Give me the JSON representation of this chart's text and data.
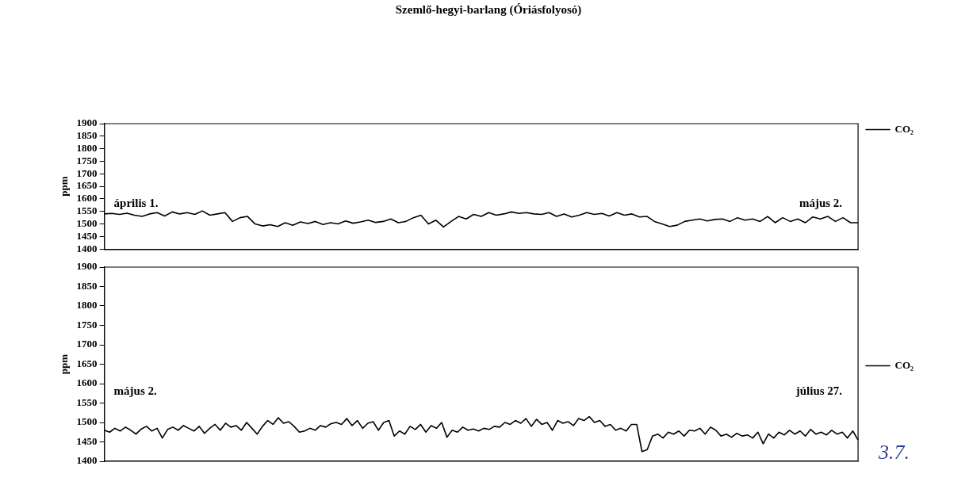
{
  "chart_data": [
    {
      "type": "line",
      "title": "Szemlő-hegyi-barlang (Óriásfolyosó)",
      "ylabel": "ppm",
      "ylim": [
        1400,
        1900
      ],
      "yticks": [
        1400,
        1450,
        1500,
        1550,
        1600,
        1650,
        1700,
        1750,
        1800,
        1850,
        1900
      ],
      "grid": false,
      "legend": "right",
      "tick_labels": "y",
      "line_style": "solid",
      "annotations": [
        "április 1.",
        "május 2."
      ],
      "categories": [
        null,
        null,
        null,
        null,
        null,
        null,
        null,
        null,
        null,
        null,
        null,
        null,
        null,
        null,
        null,
        null,
        null,
        null,
        null,
        null,
        null,
        null,
        null,
        null,
        null,
        null,
        null,
        null,
        null,
        null,
        null,
        null,
        null,
        null,
        null,
        null,
        null,
        null,
        null,
        null,
        null,
        null,
        null,
        null,
        null,
        null,
        null,
        null,
        null,
        null,
        null,
        null,
        null,
        null,
        null,
        null,
        null,
        null,
        null,
        null,
        null,
        null,
        null,
        null,
        null,
        null,
        null,
        null,
        null,
        null,
        null,
        null,
        null,
        null,
        null,
        null,
        null,
        null,
        null,
        null,
        null,
        null,
        null,
        null,
        null,
        null,
        null,
        null,
        null,
        null,
        null,
        null,
        null,
        null,
        null,
        null,
        null,
        null,
        null,
        null,
        null
      ],
      "series": [
        {
          "name": "CO₂",
          "color": "#000000",
          "values": [
            1540,
            1542,
            1538,
            1543,
            1535,
            1530,
            1540,
            1545,
            1532,
            1548,
            1540,
            1545,
            1538,
            1552,
            1535,
            1540,
            1545,
            1510,
            1525,
            1530,
            1500,
            1492,
            1497,
            1490,
            1505,
            1495,
            1508,
            1502,
            1510,
            1498,
            1505,
            1500,
            1512,
            1503,
            1508,
            1515,
            1506,
            1510,
            1520,
            1505,
            1510,
            1525,
            1535,
            1500,
            1515,
            1488,
            1510,
            1530,
            1520,
            1538,
            1530,
            1545,
            1535,
            1540,
            1548,
            1542,
            1545,
            1540,
            1538,
            1545,
            1530,
            1540,
            1528,
            1535,
            1545,
            1538,
            1542,
            1532,
            1545,
            1535,
            1540,
            1528,
            1530,
            1510,
            1500,
            1490,
            1495,
            1510,
            1515,
            1520,
            1512,
            1518,
            1520,
            1510,
            1525,
            1515,
            1520,
            1510,
            1530,
            1505,
            1525,
            1510,
            1520,
            1505,
            1528,
            1520,
            1530,
            1510,
            1525,
            1505,
            1505
          ]
        }
      ]
    },
    {
      "type": "line",
      "ylabel": "ppm",
      "ylim": [
        1400,
        1900
      ],
      "yticks": [
        1400,
        1450,
        1500,
        1550,
        1600,
        1650,
        1700,
        1750,
        1800,
        1850,
        1900
      ],
      "grid": false,
      "legend": "right",
      "tick_labels": "y",
      "line_style": "solid",
      "annotations": [
        "május 2.",
        "július 27.",
        "3.7."
      ],
      "categories": [
        null,
        null,
        null,
        null,
        null,
        null,
        null,
        null,
        null,
        null,
        null,
        null,
        null,
        null,
        null,
        null,
        null,
        null,
        null,
        null,
        null,
        null,
        null,
        null,
        null,
        null,
        null,
        null,
        null,
        null,
        null,
        null,
        null,
        null,
        null,
        null,
        null,
        null,
        null,
        null,
        null,
        null,
        null,
        null,
        null,
        null,
        null,
        null,
        null,
        null,
        null,
        null,
        null,
        null,
        null,
        null,
        null,
        null,
        null,
        null,
        null,
        null,
        null,
        null,
        null,
        null,
        null,
        null,
        null,
        null,
        null,
        null,
        null,
        null,
        null,
        null,
        null,
        null,
        null,
        null,
        null,
        null,
        null,
        null,
        null,
        null,
        null,
        null,
        null,
        null,
        null,
        null,
        null,
        null,
        null,
        null,
        null,
        null,
        null,
        null,
        null,
        null,
        null,
        null,
        null,
        null,
        null,
        null,
        null,
        null,
        null,
        null,
        null,
        null,
        null,
        null,
        null,
        null,
        null,
        null,
        null,
        null,
        null,
        null,
        null,
        null,
        null,
        null,
        null,
        null,
        null,
        null,
        null,
        null,
        null,
        null,
        null,
        null,
        null,
        null,
        null,
        null,
        null,
        null
      ],
      "series": [
        {
          "name": "CO₂",
          "color": "#000000",
          "values": [
            1480,
            1475,
            1485,
            1478,
            1488,
            1480,
            1470,
            1483,
            1490,
            1478,
            1485,
            1460,
            1482,
            1488,
            1480,
            1492,
            1485,
            1478,
            1490,
            1472,
            1485,
            1495,
            1480,
            1498,
            1488,
            1492,
            1480,
            1500,
            1485,
            1470,
            1490,
            1505,
            1495,
            1512,
            1498,
            1502,
            1490,
            1475,
            1478,
            1485,
            1480,
            1492,
            1488,
            1497,
            1500,
            1495,
            1510,
            1492,
            1505,
            1485,
            1498,
            1502,
            1480,
            1500,
            1505,
            1465,
            1478,
            1470,
            1490,
            1482,
            1495,
            1475,
            1492,
            1485,
            1500,
            1462,
            1480,
            1475,
            1488,
            1480,
            1483,
            1478,
            1485,
            1482,
            1490,
            1488,
            1500,
            1495,
            1505,
            1498,
            1510,
            1490,
            1508,
            1495,
            1500,
            1480,
            1505,
            1498,
            1502,
            1492,
            1510,
            1505,
            1515,
            1500,
            1505,
            1490,
            1495,
            1480,
            1485,
            1478,
            1495,
            1495,
            1425,
            1430,
            1465,
            1470,
            1460,
            1475,
            1470,
            1478,
            1465,
            1480,
            1478,
            1485,
            1470,
            1488,
            1480,
            1465,
            1470,
            1462,
            1472,
            1465,
            1468,
            1460,
            1475,
            1445,
            1470,
            1460,
            1475,
            1468,
            1480,
            1470,
            1478,
            1465,
            1482,
            1470,
            1475,
            1468,
            1480,
            1470,
            1475,
            1460,
            1478,
            1455
          ]
        }
      ]
    }
  ]
}
